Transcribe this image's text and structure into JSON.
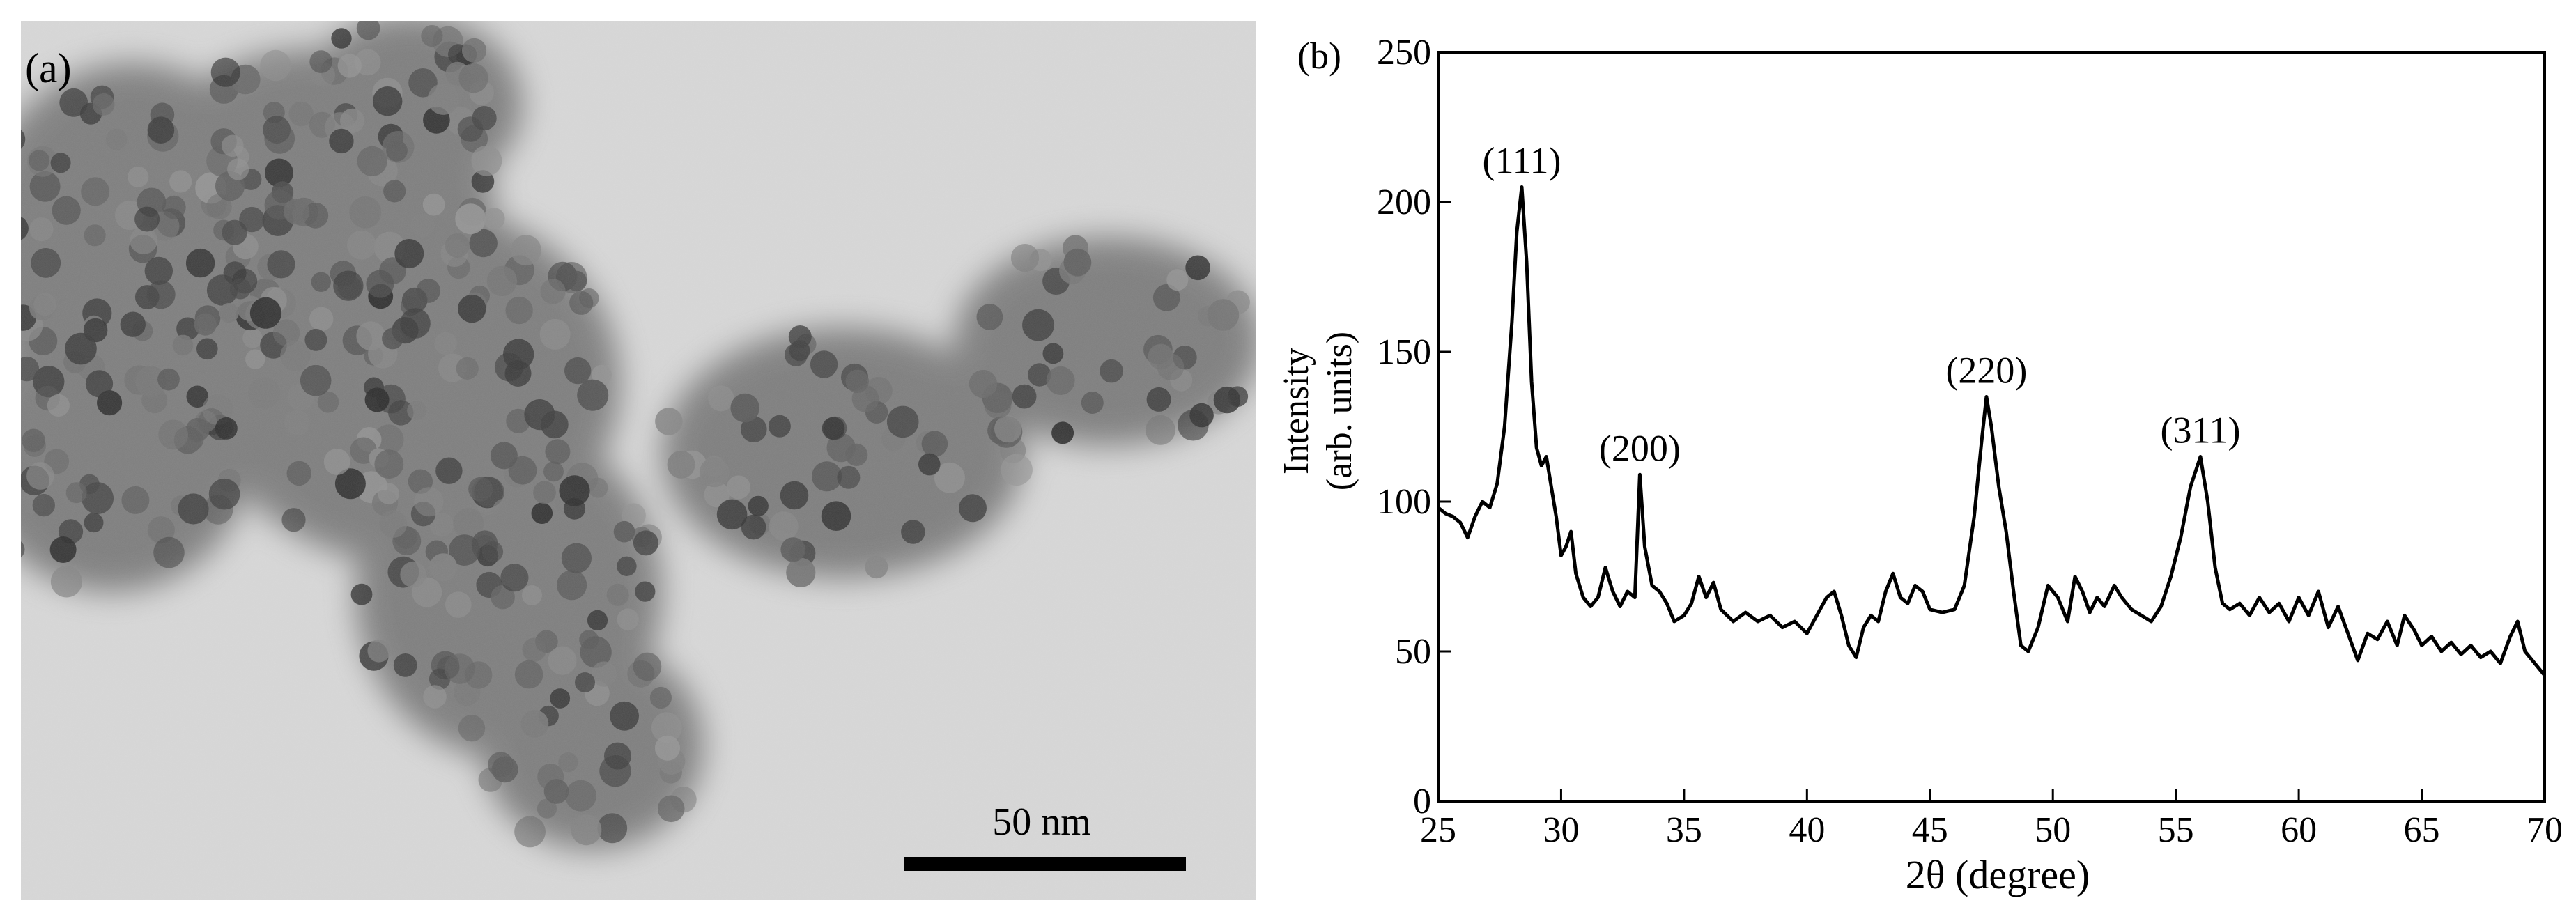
{
  "panel_a": {
    "label": "(a)",
    "scale_bar_label": "50 nm"
  },
  "panel_b": {
    "label": "(b)"
  },
  "chart_data": {
    "type": "line",
    "xlabel": "2θ (degree)",
    "ylabel_line1": "Intensity",
    "ylabel_line2": "(arb. units)",
    "xlim": [
      25,
      70
    ],
    "ylim": [
      0,
      250
    ],
    "x_ticks": [
      25,
      30,
      35,
      40,
      45,
      50,
      55,
      60,
      65,
      70
    ],
    "y_ticks": [
      0,
      50,
      100,
      150,
      200,
      250
    ],
    "grid": false,
    "annotations": [
      {
        "text": "(111)",
        "x": 28.4,
        "y": 205
      },
      {
        "text": "(200)",
        "x": 33.2,
        "y": 109
      },
      {
        "text": "(220)",
        "x": 47.3,
        "y": 135
      },
      {
        "text": "(311)",
        "x": 56.0,
        "y": 115
      }
    ],
    "series": [
      {
        "points": [
          [
            25.0,
            98
          ],
          [
            25.3,
            96
          ],
          [
            25.6,
            95
          ],
          [
            25.9,
            93
          ],
          [
            26.2,
            88
          ],
          [
            26.5,
            95
          ],
          [
            26.8,
            100
          ],
          [
            27.1,
            98
          ],
          [
            27.4,
            106
          ],
          [
            27.7,
            125
          ],
          [
            28.0,
            160
          ],
          [
            28.2,
            190
          ],
          [
            28.4,
            205
          ],
          [
            28.6,
            180
          ],
          [
            28.8,
            140
          ],
          [
            29.0,
            118
          ],
          [
            29.2,
            112
          ],
          [
            29.4,
            115
          ],
          [
            29.6,
            105
          ],
          [
            29.8,
            95
          ],
          [
            30.0,
            82
          ],
          [
            30.2,
            85
          ],
          [
            30.4,
            90
          ],
          [
            30.6,
            76
          ],
          [
            30.9,
            68
          ],
          [
            31.2,
            65
          ],
          [
            31.5,
            68
          ],
          [
            31.8,
            78
          ],
          [
            32.1,
            70
          ],
          [
            32.4,
            65
          ],
          [
            32.7,
            70
          ],
          [
            33.0,
            68
          ],
          [
            33.2,
            109
          ],
          [
            33.4,
            85
          ],
          [
            33.7,
            72
          ],
          [
            34.0,
            70
          ],
          [
            34.3,
            66
          ],
          [
            34.6,
            60
          ],
          [
            35.0,
            62
          ],
          [
            35.3,
            66
          ],
          [
            35.6,
            75
          ],
          [
            35.9,
            68
          ],
          [
            36.2,
            73
          ],
          [
            36.5,
            64
          ],
          [
            37.0,
            60
          ],
          [
            37.5,
            63
          ],
          [
            38.0,
            60
          ],
          [
            38.5,
            62
          ],
          [
            39.0,
            58
          ],
          [
            39.5,
            60
          ],
          [
            40.0,
            56
          ],
          [
            40.4,
            62
          ],
          [
            40.8,
            68
          ],
          [
            41.1,
            70
          ],
          [
            41.4,
            62
          ],
          [
            41.7,
            52
          ],
          [
            42.0,
            48
          ],
          [
            42.3,
            58
          ],
          [
            42.6,
            62
          ],
          [
            42.9,
            60
          ],
          [
            43.2,
            70
          ],
          [
            43.5,
            76
          ],
          [
            43.8,
            68
          ],
          [
            44.1,
            66
          ],
          [
            44.4,
            72
          ],
          [
            44.7,
            70
          ],
          [
            45.0,
            64
          ],
          [
            45.5,
            63
          ],
          [
            46.0,
            64
          ],
          [
            46.4,
            72
          ],
          [
            46.8,
            95
          ],
          [
            47.1,
            120
          ],
          [
            47.3,
            135
          ],
          [
            47.5,
            125
          ],
          [
            47.8,
            105
          ],
          [
            48.1,
            90
          ],
          [
            48.4,
            70
          ],
          [
            48.7,
            52
          ],
          [
            49.0,
            50
          ],
          [
            49.4,
            58
          ],
          [
            49.8,
            72
          ],
          [
            50.2,
            68
          ],
          [
            50.6,
            60
          ],
          [
            50.9,
            75
          ],
          [
            51.2,
            70
          ],
          [
            51.5,
            63
          ],
          [
            51.8,
            68
          ],
          [
            52.1,
            65
          ],
          [
            52.5,
            72
          ],
          [
            52.8,
            68
          ],
          [
            53.2,
            64
          ],
          [
            53.6,
            62
          ],
          [
            54.0,
            60
          ],
          [
            54.4,
            65
          ],
          [
            54.8,
            75
          ],
          [
            55.2,
            88
          ],
          [
            55.6,
            105
          ],
          [
            56.0,
            115
          ],
          [
            56.3,
            100
          ],
          [
            56.6,
            78
          ],
          [
            56.9,
            66
          ],
          [
            57.2,
            64
          ],
          [
            57.6,
            66
          ],
          [
            58.0,
            62
          ],
          [
            58.4,
            68
          ],
          [
            58.8,
            63
          ],
          [
            59.2,
            66
          ],
          [
            59.6,
            60
          ],
          [
            60.0,
            68
          ],
          [
            60.4,
            62
          ],
          [
            60.8,
            70
          ],
          [
            61.2,
            58
          ],
          [
            61.6,
            65
          ],
          [
            62.0,
            56
          ],
          [
            62.4,
            47
          ],
          [
            62.8,
            56
          ],
          [
            63.2,
            54
          ],
          [
            63.6,
            60
          ],
          [
            64.0,
            52
          ],
          [
            64.3,
            62
          ],
          [
            64.7,
            57
          ],
          [
            65.0,
            52
          ],
          [
            65.4,
            55
          ],
          [
            65.8,
            50
          ],
          [
            66.2,
            53
          ],
          [
            66.6,
            49
          ],
          [
            67.0,
            52
          ],
          [
            67.4,
            48
          ],
          [
            67.8,
            50
          ],
          [
            68.2,
            46
          ],
          [
            68.6,
            55
          ],
          [
            68.9,
            60
          ],
          [
            69.2,
            50
          ],
          [
            69.6,
            46
          ],
          [
            70.0,
            42
          ]
        ]
      }
    ]
  }
}
